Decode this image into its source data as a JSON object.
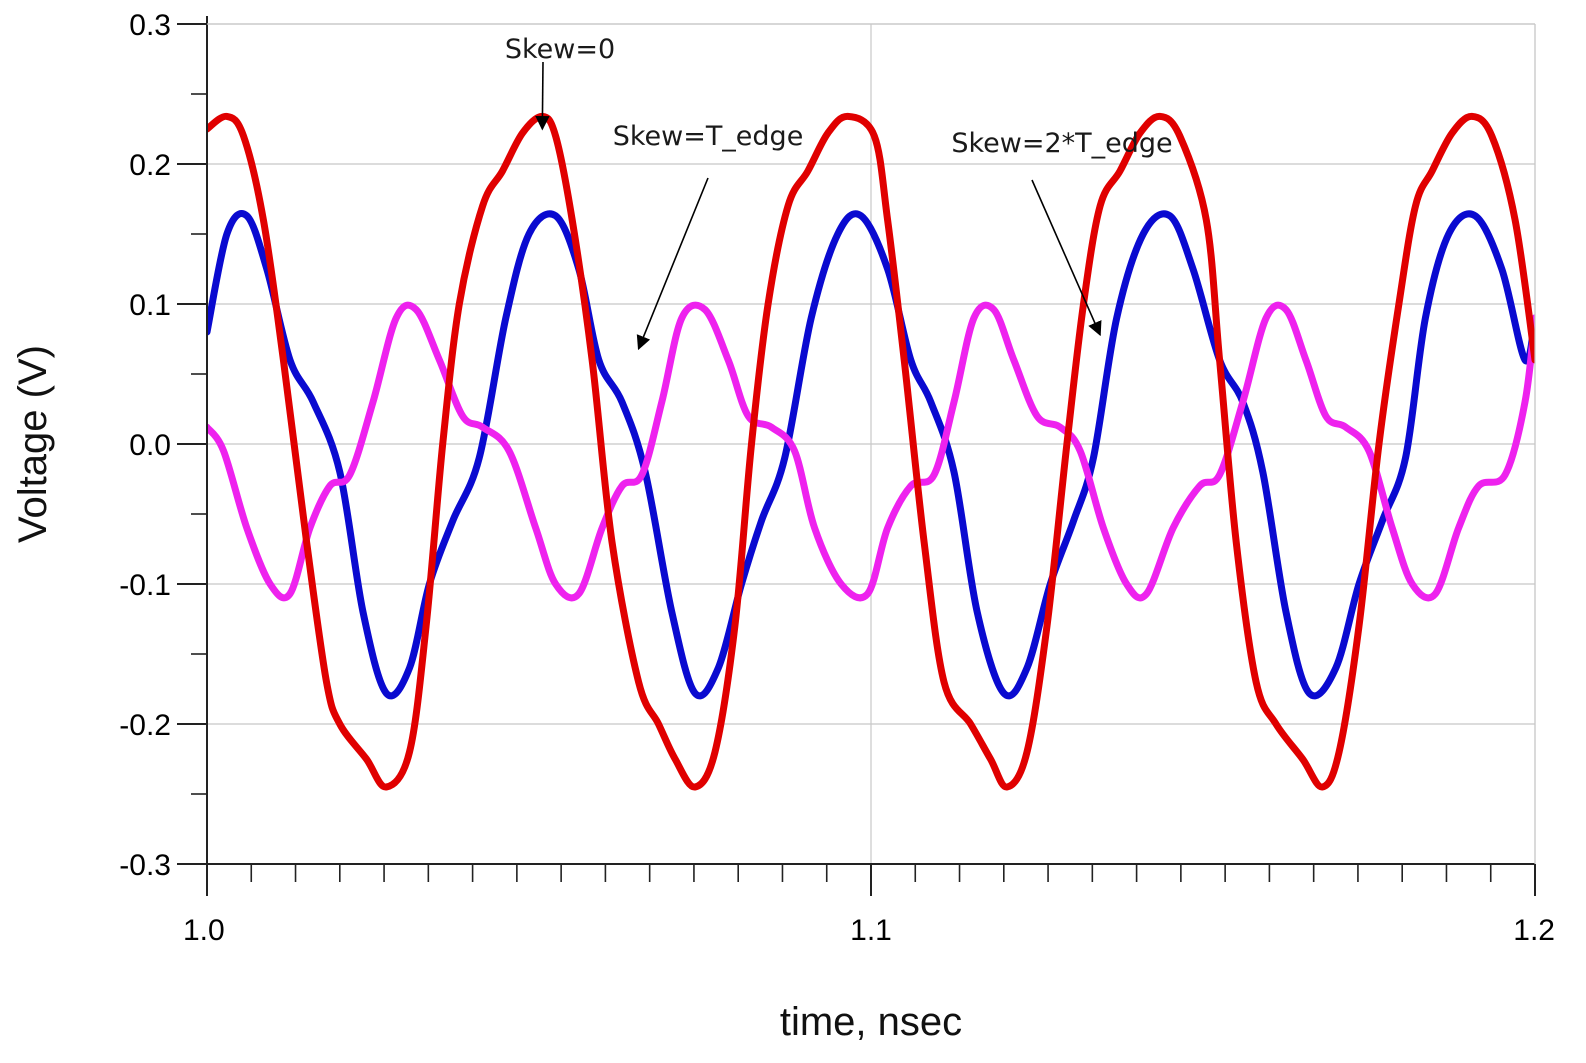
{
  "chart_data": {
    "type": "line",
    "title": "",
    "xlabel": "time, nsec",
    "ylabel": "Voltage (V)",
    "xlim": [
      1.0,
      1.2
    ],
    "ylim": [
      -0.3,
      0.3
    ],
    "grid": true,
    "x_ticks": [
      {
        "value": 1.0,
        "label": "1.0"
      },
      {
        "value": 1.1,
        "label": "1.1"
      },
      {
        "value": 1.2,
        "label": "1.2"
      }
    ],
    "y_ticks": [
      {
        "value": 0.3,
        "label": "0.3"
      },
      {
        "value": 0.2,
        "label": "0.2"
      },
      {
        "value": 0.1,
        "label": "0.1"
      },
      {
        "value": 0.0,
        "label": "0.0"
      },
      {
        "value": -0.1,
        "label": "-0.1"
      },
      {
        "value": -0.2,
        "label": "-0.2"
      },
      {
        "value": -0.3,
        "label": "-0.3"
      }
    ],
    "series": [
      {
        "color": "#e00000",
        "x": [
          1.0,
          1.003,
          1.0055,
          1.0085,
          1.0115,
          1.015,
          1.018,
          1.02,
          1.024,
          1.027,
          1.0305,
          1.033,
          1.0355,
          1.038,
          1.0415,
          1.0445,
          1.0475,
          1.0505,
          1.0525,
          1.055,
          1.058,
          1.061,
          1.065,
          1.068,
          1.0705,
          1.0735,
          1.0765,
          1.0795,
          1.082,
          1.0845,
          1.0875,
          1.0905,
          1.0935,
          1.0965,
          1.1005,
          1.1025,
          1.105,
          1.108,
          1.111,
          1.115,
          1.118,
          1.1205,
          1.1235,
          1.1265,
          1.1295,
          1.132,
          1.1345,
          1.1375,
          1.1405,
          1.1435,
          1.1465,
          1.1505,
          1.1525,
          1.155,
          1.158,
          1.161,
          1.165,
          1.168,
          1.1705,
          1.1735,
          1.1765,
          1.1795,
          1.182,
          1.1845,
          1.1875,
          1.1905,
          1.1935,
          1.197,
          1.2
        ],
        "values": [
          0.225,
          0.234,
          0.22,
          0.16,
          0.06,
          -0.07,
          -0.17,
          -0.2,
          -0.225,
          -0.245,
          -0.22,
          -0.13,
          0.0,
          0.1,
          0.17,
          0.195,
          0.222,
          0.234,
          0.22,
          0.16,
          0.06,
          -0.07,
          -0.17,
          -0.2,
          -0.225,
          -0.245,
          -0.22,
          -0.13,
          0.0,
          0.1,
          0.17,
          0.195,
          0.222,
          0.234,
          0.22,
          0.16,
          0.06,
          -0.07,
          -0.17,
          -0.2,
          -0.225,
          -0.245,
          -0.22,
          -0.13,
          0.0,
          0.1,
          0.17,
          0.195,
          0.222,
          0.234,
          0.22,
          0.16,
          0.06,
          -0.07,
          -0.17,
          -0.2,
          -0.225,
          -0.245,
          -0.22,
          -0.13,
          0.0,
          0.1,
          0.17,
          0.195,
          0.222,
          0.234,
          0.22,
          0.16,
          0.06
        ]
      },
      {
        "color": "#0a0ad0",
        "x": [
          1.0,
          1.003,
          1.006,
          1.009,
          1.0125,
          1.016,
          1.02,
          1.0235,
          1.027,
          1.0305,
          1.0335,
          1.037,
          1.041,
          1.045,
          1.0485,
          1.0525,
          1.056,
          1.059,
          1.0625,
          1.066,
          1.07,
          1.0735,
          1.077,
          1.0805,
          1.0835,
          1.087,
          1.091,
          1.095,
          1.0985,
          1.1025,
          1.106,
          1.109,
          1.1125,
          1.116,
          1.12,
          1.1235,
          1.127,
          1.1305,
          1.1335,
          1.137,
          1.141,
          1.145,
          1.1485,
          1.1525,
          1.156,
          1.159,
          1.1625,
          1.166,
          1.17,
          1.1735,
          1.177,
          1.1805,
          1.1835,
          1.187,
          1.191,
          1.195,
          1.1985,
          1.2
        ],
        "values": [
          0.08,
          0.15,
          0.163,
          0.125,
          0.06,
          0.03,
          -0.02,
          -0.12,
          -0.178,
          -0.16,
          -0.1,
          -0.055,
          -0.01,
          0.09,
          0.15,
          0.163,
          0.125,
          0.06,
          0.03,
          -0.02,
          -0.12,
          -0.178,
          -0.16,
          -0.1,
          -0.055,
          -0.01,
          0.09,
          0.15,
          0.163,
          0.125,
          0.06,
          0.03,
          -0.02,
          -0.12,
          -0.178,
          -0.16,
          -0.1,
          -0.055,
          -0.01,
          0.09,
          0.15,
          0.163,
          0.125,
          0.06,
          0.03,
          -0.02,
          -0.12,
          -0.178,
          -0.16,
          -0.1,
          -0.055,
          -0.01,
          0.09,
          0.15,
          0.163,
          0.125,
          0.06,
          0.09
        ]
      },
      {
        "color": "#ee22ee",
        "x": [
          1.0,
          1.0025,
          1.006,
          1.0095,
          1.0125,
          1.0155,
          1.0185,
          1.0215,
          1.025,
          1.0285,
          1.0315,
          1.035,
          1.0385,
          1.0415,
          1.0455,
          1.0495,
          1.0525,
          1.056,
          1.0595,
          1.0625,
          1.0655,
          1.0685,
          1.0715,
          1.075,
          1.0785,
          1.0815,
          1.085,
          1.0885,
          1.0915,
          1.0955,
          1.0995,
          1.1025,
          1.106,
          1.1095,
          1.1125,
          1.1155,
          1.1185,
          1.1215,
          1.125,
          1.1285,
          1.1315,
          1.135,
          1.1385,
          1.1415,
          1.1455,
          1.1495,
          1.1525,
          1.156,
          1.1595,
          1.1625,
          1.1655,
          1.1685,
          1.1715,
          1.175,
          1.1785,
          1.1815,
          1.185,
          1.1885,
          1.1915,
          1.1955,
          1.1985,
          1.2
        ],
        "values": [
          0.012,
          -0.005,
          -0.06,
          -0.1,
          -0.107,
          -0.06,
          -0.03,
          -0.022,
          0.03,
          0.09,
          0.096,
          0.06,
          0.02,
          0.012,
          -0.005,
          -0.06,
          -0.1,
          -0.107,
          -0.06,
          -0.03,
          -0.022,
          0.03,
          0.09,
          0.096,
          0.06,
          0.02,
          0.012,
          -0.005,
          -0.06,
          -0.1,
          -0.107,
          -0.06,
          -0.03,
          -0.022,
          0.03,
          0.09,
          0.096,
          0.06,
          0.02,
          0.012,
          -0.005,
          -0.06,
          -0.1,
          -0.107,
          -0.06,
          -0.03,
          -0.022,
          0.03,
          0.09,
          0.096,
          0.06,
          0.02,
          0.012,
          -0.005,
          -0.06,
          -0.1,
          -0.107,
          -0.06,
          -0.03,
          -0.022,
          0.03,
          0.09
        ]
      }
    ],
    "annotations": [
      {
        "text": "Skew=0",
        "target": {
          "x": 1.0505,
          "y": 0.225
        }
      },
      {
        "text": "Skew=T_edge",
        "target": {
          "x": 1.065,
          "y": 0.068
        }
      },
      {
        "text": "Skew=2*T_edge",
        "target": {
          "x": 1.1345,
          "y": 0.078
        }
      }
    ]
  }
}
